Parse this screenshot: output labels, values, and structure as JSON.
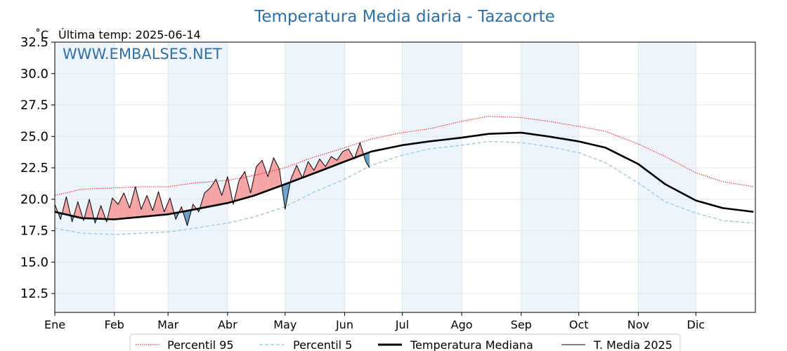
{
  "chart_data": {
    "type": "line",
    "title": "Temperatura Media diaria - Tazacorte",
    "unit_label": "˚C",
    "last_temp_label": "Última temp: 2025-06-14",
    "watermark": "WWW.EMBALSES.NET",
    "xlabel": "",
    "ylabel": "",
    "x_ticks": [
      "Ene",
      "Feb",
      "Mar",
      "Abr",
      "May",
      "Jun",
      "Jul",
      "Ago",
      "Sep",
      "Oct",
      "Nov",
      "Dic"
    ],
    "y_ticks": [
      "12.5",
      "15.0",
      "17.5",
      "20.0",
      "22.5",
      "25.0",
      "27.5",
      "30.0",
      "32.5"
    ],
    "ylim": [
      11,
      32.5
    ],
    "xlim": [
      1,
      366
    ],
    "grid": true,
    "legend_position": "bottom",
    "colors": {
      "p95": "#ff0000",
      "p5": "#8fc3d9",
      "median": "#000000",
      "year": "#000000",
      "above_fill": "#f4a4a4",
      "below_fill": "#6f9fc6",
      "month_band": "#eef4fb",
      "title": "#2f6fa6"
    },
    "series": [
      {
        "name": "Percentil 95",
        "style": "dotted",
        "x": [
          1,
          15,
          32,
          46,
          60,
          74,
          91,
          105,
          121,
          135,
          152,
          166,
          182,
          196,
          213,
          227,
          244,
          258,
          274,
          288,
          305,
          319,
          335,
          349,
          365
        ],
        "values": [
          20.3,
          20.8,
          20.9,
          21.0,
          21.0,
          21.3,
          21.5,
          21.9,
          22.5,
          23.3,
          24.1,
          24.8,
          25.3,
          25.6,
          26.2,
          26.6,
          26.5,
          26.2,
          25.8,
          25.4,
          24.4,
          23.4,
          22.1,
          21.4,
          21.0
        ]
      },
      {
        "name": "Percentil 5",
        "style": "dashed",
        "x": [
          1,
          15,
          32,
          46,
          60,
          74,
          91,
          105,
          121,
          135,
          152,
          166,
          182,
          196,
          213,
          227,
          244,
          258,
          274,
          288,
          305,
          319,
          335,
          349,
          365
        ],
        "values": [
          17.7,
          17.3,
          17.2,
          17.3,
          17.4,
          17.7,
          18.1,
          18.6,
          19.4,
          20.5,
          21.6,
          22.7,
          23.5,
          24.0,
          24.3,
          24.6,
          24.5,
          24.2,
          23.7,
          22.9,
          21.3,
          19.8,
          18.9,
          18.3,
          18.1
        ]
      },
      {
        "name": "Temperatura Mediana",
        "style": "solid-thick",
        "x": [
          1,
          15,
          32,
          46,
          60,
          74,
          91,
          105,
          121,
          135,
          152,
          166,
          182,
          196,
          213,
          227,
          244,
          258,
          274,
          288,
          305,
          319,
          335,
          349,
          365
        ],
        "values": [
          19.0,
          18.5,
          18.4,
          18.6,
          18.8,
          19.2,
          19.7,
          20.3,
          21.2,
          22.0,
          23.0,
          23.8,
          24.3,
          24.6,
          24.9,
          25.2,
          25.3,
          25.0,
          24.6,
          24.1,
          22.8,
          21.2,
          19.9,
          19.3,
          19.0
        ]
      },
      {
        "name": "T. Media 2025",
        "style": "solid-thin",
        "x": [
          1,
          4,
          7,
          10,
          13,
          16,
          19,
          22,
          25,
          28,
          31,
          34,
          37,
          40,
          43,
          46,
          49,
          52,
          55,
          58,
          61,
          64,
          67,
          70,
          73,
          76,
          79,
          82,
          85,
          88,
          91,
          94,
          97,
          100,
          103,
          106,
          109,
          112,
          115,
          118,
          121,
          124,
          127,
          130,
          133,
          136,
          139,
          142,
          145,
          148,
          151,
          154,
          157,
          160,
          163,
          165
        ],
        "values": [
          19.6,
          18.4,
          20.2,
          18.2,
          19.8,
          18.3,
          20.0,
          18.1,
          19.5,
          18.2,
          20.1,
          19.6,
          20.5,
          19.3,
          21.0,
          19.2,
          20.3,
          19.1,
          20.6,
          19.0,
          20.1,
          18.4,
          19.4,
          17.9,
          19.6,
          19.0,
          20.5,
          20.9,
          21.6,
          20.3,
          21.8,
          19.6,
          21.5,
          22.2,
          20.5,
          22.6,
          23.1,
          21.8,
          23.3,
          22.4,
          19.2,
          21.6,
          22.7,
          21.7,
          23.0,
          22.3,
          23.2,
          22.6,
          23.4,
          23.1,
          23.8,
          24.0,
          23.2,
          24.5,
          23.0,
          22.5
        ]
      }
    ]
  }
}
